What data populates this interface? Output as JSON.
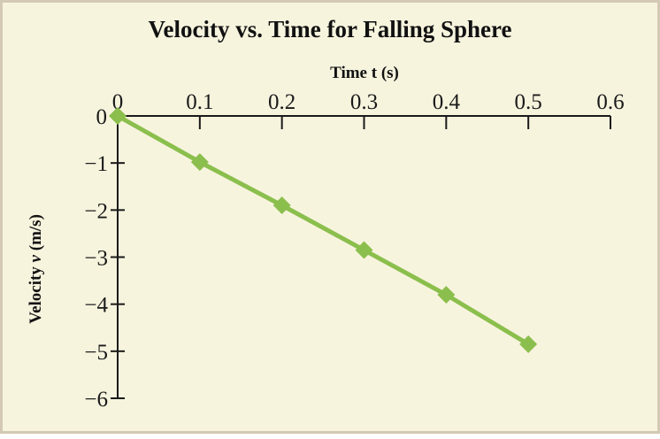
{
  "chart_data": {
    "type": "line",
    "title": "Velocity vs. Time for Falling Sphere",
    "xlabel": "Time t (s)",
    "ylabel": "Velocity v (m/s)",
    "ylabel_parts": {
      "prefix": "Velocity ",
      "var": "v",
      "suffix": " (m/s)"
    },
    "xlim": [
      0,
      0.6
    ],
    "ylim": [
      -6,
      0
    ],
    "xticks": [
      0,
      0.1,
      0.2,
      0.3,
      0.4,
      0.5,
      0.6
    ],
    "xtick_labels": [
      "0",
      "0.1",
      "0.2",
      "0.3",
      "0.4",
      "0.5",
      "0.6"
    ],
    "yticks": [
      0,
      -1,
      -2,
      -3,
      -4,
      -5,
      -6
    ],
    "ytick_labels": [
      "0",
      "−1",
      "−2",
      "−3",
      "−4",
      "−5",
      "−6"
    ],
    "x_axis_position": "top",
    "grid": false,
    "legend": "none",
    "series": [
      {
        "name": "Falling Sphere",
        "marker": "diamond",
        "color": "#8bbf4d",
        "x": [
          0,
          0.1,
          0.2,
          0.3,
          0.4,
          0.5
        ],
        "y": [
          0,
          -0.98,
          -1.9,
          -2.85,
          -3.8,
          -4.85
        ]
      }
    ]
  },
  "colors": {
    "background": "#f7f4de",
    "border": "#d3c9b4",
    "axis": "#1a1a1a",
    "series": "#8bbf4d"
  }
}
